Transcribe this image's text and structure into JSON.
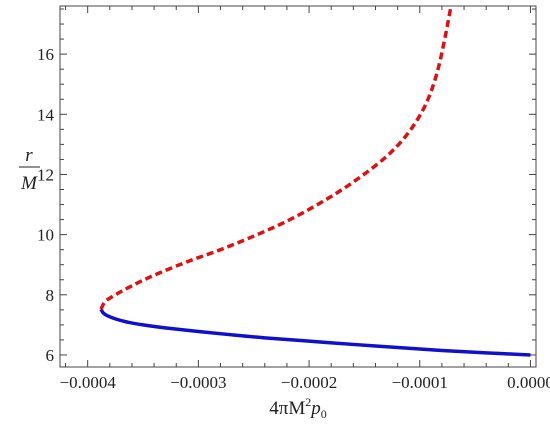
{
  "chart_data": {
    "type": "line",
    "xlim": [
      -0.000425,
      5e-06
    ],
    "ylim": [
      5.6,
      17.6
    ],
    "x_ticks": [
      {
        "value": -0.0004,
        "label": "−0.0004"
      },
      {
        "value": -0.0003,
        "label": "−0.0003"
      },
      {
        "value": -0.0002,
        "label": "−0.0002"
      },
      {
        "value": -0.0001,
        "label": "−0.0001"
      },
      {
        "value": 0.0,
        "label": "0.0000"
      }
    ],
    "y_ticks": [
      {
        "value": 6,
        "label": "6"
      },
      {
        "value": 8,
        "label": "8"
      },
      {
        "value": 10,
        "label": "10"
      },
      {
        "value": 12,
        "label": "12"
      },
      {
        "value": 14,
        "label": "14"
      },
      {
        "value": 16,
        "label": "16"
      }
    ],
    "xlabel": {
      "prefix": "4πM",
      "sup": "2",
      "p": "p",
      "sub": "0"
    },
    "ylabel": {
      "numerator": "r",
      "denominator": "M"
    },
    "series": [
      {
        "style": "solid",
        "color": "#1010cc",
        "points": [
          [
            -0.000388,
            7.52
          ],
          [
            -0.000386,
            7.4
          ],
          [
            -0.000382,
            7.3
          ],
          [
            -0.000375,
            7.2
          ],
          [
            -0.000365,
            7.1
          ],
          [
            -0.00035,
            7.0
          ],
          [
            -0.00033,
            6.9
          ],
          [
            -0.0003,
            6.78
          ],
          [
            -0.00027,
            6.67
          ],
          [
            -0.00024,
            6.57
          ],
          [
            -0.0002,
            6.46
          ],
          [
            -0.00016,
            6.35
          ],
          [
            -0.00012,
            6.25
          ],
          [
            -8e-05,
            6.15
          ],
          [
            -4e-05,
            6.07
          ],
          [
            0.0,
            6.0
          ]
        ]
      },
      {
        "style": "dashed",
        "color": "#e01010",
        "points": [
          [
            -0.000388,
            7.52
          ],
          [
            -0.000384,
            7.78
          ],
          [
            -0.000375,
            8.0
          ],
          [
            -0.00036,
            8.3
          ],
          [
            -0.00034,
            8.65
          ],
          [
            -0.00031,
            9.1
          ],
          [
            -0.00028,
            9.5
          ],
          [
            -0.00025,
            9.95
          ],
          [
            -0.00022,
            10.45
          ],
          [
            -0.00019,
            11.05
          ],
          [
            -0.00016,
            11.75
          ],
          [
            -0.00013,
            12.6
          ],
          [
            -0.00011,
            13.4
          ],
          [
            -9.5e-05,
            14.3
          ],
          [
            -8.5e-05,
            15.3
          ],
          [
            -7.8e-05,
            16.4
          ],
          [
            -7.2e-05,
            17.55
          ]
        ]
      }
    ]
  }
}
